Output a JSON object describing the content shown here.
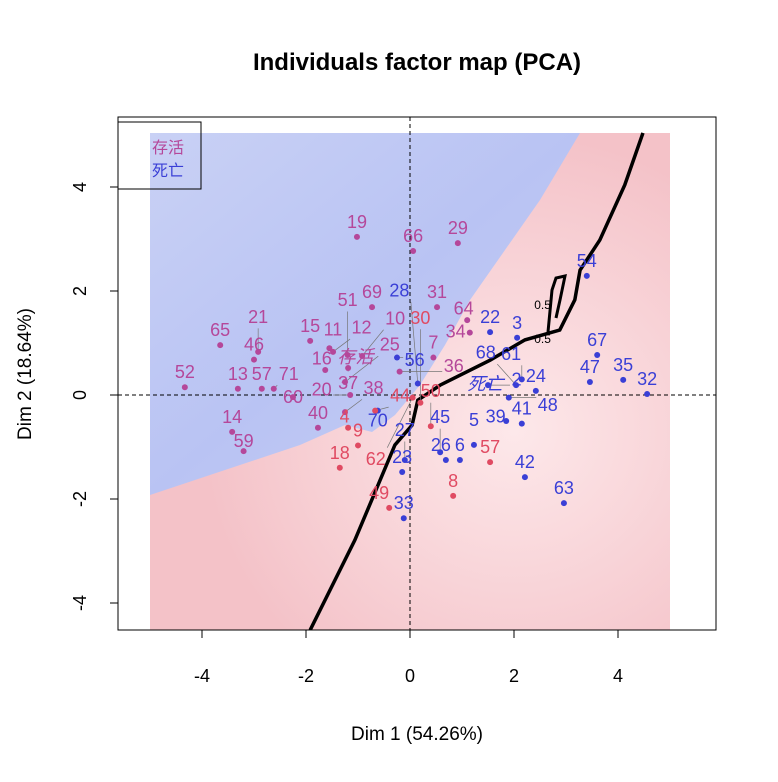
{
  "chart_data": {
    "type": "scatter",
    "title": "Individuals factor map (PCA)",
    "xlabel": "Dim 1 (54.26%)",
    "ylabel": "Dim 2 (18.64%)",
    "xlim": [
      -5.62,
      5.88
    ],
    "ylim": [
      -4.52,
      5.35
    ],
    "xticks": [
      -4,
      -2,
      0,
      2,
      4
    ],
    "yticks": [
      -4,
      -2,
      0,
      2,
      4
    ],
    "grid": false,
    "legend": {
      "placement": "top-left",
      "entries": [
        {
          "label": "存活",
          "color": "#b5479a"
        },
        {
          "label": "死亡",
          "color": "#3a3fd6"
        }
      ]
    },
    "colors": {
      "survive": "#b5479a",
      "death": "#3a3fd6",
      "red": "#e04a62",
      "region_blue": "#b8c2f2",
      "region_red": "#f3c3c8",
      "boundary": "#000000"
    },
    "centroid_labels": [
      {
        "label": "存活",
        "x": -1.05,
        "y": 0.62,
        "color": "#b5479a"
      },
      {
        "label": "死亡",
        "x": 1.45,
        "y": 0.1,
        "color": "#3a3fd6"
      }
    ],
    "contour_labels": [
      {
        "label": "0.5",
        "x": 2.55,
        "y": 1.65
      },
      {
        "label": "0.5",
        "x": 2.55,
        "y": 1.0
      }
    ],
    "boundary": [
      [
        -1.92,
        -4.52
      ],
      [
        -1.06,
        -2.79
      ],
      [
        -0.29,
        -0.96
      ],
      [
        0.04,
        -0.58
      ],
      [
        0.15,
        -0.1
      ],
      [
        0.58,
        0.19
      ],
      [
        1.54,
        0.67
      ],
      [
        2.21,
        1.06
      ],
      [
        2.88,
        1.25
      ],
      [
        3.17,
        1.83
      ],
      [
        3.27,
        2.4
      ],
      [
        3.65,
        2.98
      ],
      [
        4.13,
        4.04
      ],
      [
        4.48,
        5.04
      ]
    ],
    "points": [
      {
        "label": "19",
        "x": -1.02,
        "y": 3.04,
        "g": "survive"
      },
      {
        "label": "66",
        "x": 0.06,
        "y": 2.77,
        "g": "survive"
      },
      {
        "label": "29",
        "x": 0.92,
        "y": 2.92,
        "g": "survive"
      },
      {
        "label": "69",
        "x": -0.73,
        "y": 1.69,
        "g": "survive"
      },
      {
        "label": "31",
        "x": 0.52,
        "y": 1.69,
        "g": "survive"
      },
      {
        "label": "64",
        "x": 1.1,
        "y": 1.44,
        "g": "survive"
      },
      {
        "label": "34",
        "x": 1.15,
        "y": 1.2,
        "g": "survive"
      },
      {
        "label": "22",
        "x": 1.54,
        "y": 1.21,
        "g": "death"
      },
      {
        "label": "3",
        "x": 2.06,
        "y": 1.1,
        "g": "death"
      },
      {
        "label": "54",
        "x": 3.4,
        "y": 2.29,
        "g": "death"
      },
      {
        "label": "67",
        "x": 3.6,
        "y": 0.77,
        "g": "death"
      },
      {
        "label": "47",
        "x": 3.46,
        "y": 0.25,
        "g": "death"
      },
      {
        "label": "35",
        "x": 4.1,
        "y": 0.29,
        "g": "death"
      },
      {
        "label": "32",
        "x": 4.56,
        "y": 0.02,
        "g": "death"
      },
      {
        "label": "24",
        "x": 2.42,
        "y": 0.08,
        "g": "death"
      },
      {
        "label": "61",
        "x": 2.15,
        "y": 0.3,
        "g": "death"
      },
      {
        "label": "68",
        "x": 2.04,
        "y": 0.19,
        "g": "death"
      },
      {
        "label": "2",
        "x": 1.5,
        "y": 0.19,
        "g": "death"
      },
      {
        "label": "48",
        "x": 1.9,
        "y": -0.05,
        "g": "death"
      },
      {
        "label": "41",
        "x": 2.15,
        "y": -0.55,
        "g": "death"
      },
      {
        "label": "39",
        "x": 1.85,
        "y": -0.5,
        "g": "death"
      },
      {
        "label": "5",
        "x": 1.23,
        "y": -0.96,
        "g": "death"
      },
      {
        "label": "42",
        "x": 2.21,
        "y": -1.58,
        "g": "death"
      },
      {
        "label": "63",
        "x": 2.96,
        "y": -2.08,
        "g": "death"
      },
      {
        "label": "45",
        "x": 0.58,
        "y": -1.1,
        "g": "death"
      },
      {
        "label": "26",
        "x": 0.69,
        "y": -1.25,
        "g": "death"
      },
      {
        "label": "6",
        "x": 0.96,
        "y": -1.25,
        "g": "death"
      },
      {
        "label": "50",
        "x": 0.4,
        "y": -0.6,
        "g": "red"
      },
      {
        "label": "57",
        "x": 1.54,
        "y": -1.29,
        "g": "red"
      },
      {
        "label": "8",
        "x": 0.83,
        "y": -1.94,
        "g": "red"
      },
      {
        "label": "33",
        "x": -0.12,
        "y": -2.37,
        "g": "death"
      },
      {
        "label": "49",
        "x": -0.4,
        "y": -2.17,
        "g": "red"
      },
      {
        "label": "23",
        "x": -0.15,
        "y": -1.48,
        "g": "death"
      },
      {
        "label": "27",
        "x": -0.1,
        "y": -1.25,
        "g": "death"
      },
      {
        "label": "62",
        "x": 0.05,
        "y": -0.05,
        "g": "red"
      },
      {
        "label": "30",
        "x": 0.2,
        "y": -0.15,
        "g": "red"
      },
      {
        "label": "28",
        "x": 0.15,
        "y": 0.22,
        "g": "death"
      },
      {
        "label": "36",
        "x": -0.2,
        "y": 0.45,
        "g": "survive"
      },
      {
        "label": "56",
        "x": -0.25,
        "y": 0.72,
        "g": "death"
      },
      {
        "label": "7",
        "x": 0.45,
        "y": 0.72,
        "g": "survive"
      },
      {
        "label": "70",
        "x": -0.62,
        "y": -0.3,
        "g": "death"
      },
      {
        "label": "65",
        "x": -3.65,
        "y": 0.96,
        "g": "survive"
      },
      {
        "label": "21",
        "x": -2.92,
        "y": 0.83,
        "g": "survive"
      },
      {
        "label": "46",
        "x": -3.0,
        "y": 0.68,
        "g": "survive"
      },
      {
        "label": "52",
        "x": -4.33,
        "y": 0.15,
        "g": "survive"
      },
      {
        "label": "13",
        "x": -3.31,
        "y": 0.12,
        "g": "survive"
      },
      {
        "label": "57",
        "x": -2.85,
        "y": 0.12,
        "g": "survive"
      },
      {
        "label": "71",
        "x": -2.62,
        "y": 0.12,
        "g": "survive"
      },
      {
        "label": "60",
        "x": -2.25,
        "y": -0.04,
        "g": "survive"
      },
      {
        "label": "15",
        "x": -1.92,
        "y": 1.04,
        "g": "survive"
      },
      {
        "label": "11",
        "x": -1.55,
        "y": 0.9,
        "g": "survive"
      },
      {
        "label": "12",
        "x": -1.48,
        "y": 0.83,
        "g": "survive"
      },
      {
        "label": "51",
        "x": -1.2,
        "y": 0.77,
        "g": "survive"
      },
      {
        "label": "10",
        "x": -0.92,
        "y": 0.75,
        "g": "survive"
      },
      {
        "label": "16",
        "x": -1.63,
        "y": 0.48,
        "g": "survive"
      },
      {
        "label": "37",
        "x": -1.19,
        "y": 0.52,
        "g": "survive"
      },
      {
        "label": "25",
        "x": -1.25,
        "y": 0.25,
        "g": "survive"
      },
      {
        "label": "20",
        "x": -1.15,
        "y": 0.0,
        "g": "survive"
      },
      {
        "label": "40",
        "x": -1.77,
        "y": -0.63,
        "g": "survive"
      },
      {
        "label": "38",
        "x": -1.25,
        "y": -0.33,
        "g": "survive"
      },
      {
        "label": "4",
        "x": -1.19,
        "y": -0.63,
        "g": "red"
      },
      {
        "label": "44",
        "x": -0.67,
        "y": -0.3,
        "g": "red"
      },
      {
        "label": "18",
        "x": -1.35,
        "y": -1.4,
        "g": "red"
      },
      {
        "label": "9",
        "x": -1.0,
        "y": -0.97,
        "g": "red"
      },
      {
        "label": "14",
        "x": -3.42,
        "y": -0.71,
        "g": "survive"
      },
      {
        "label": "59",
        "x": -3.2,
        "y": -1.08,
        "g": "survive"
      }
    ]
  }
}
